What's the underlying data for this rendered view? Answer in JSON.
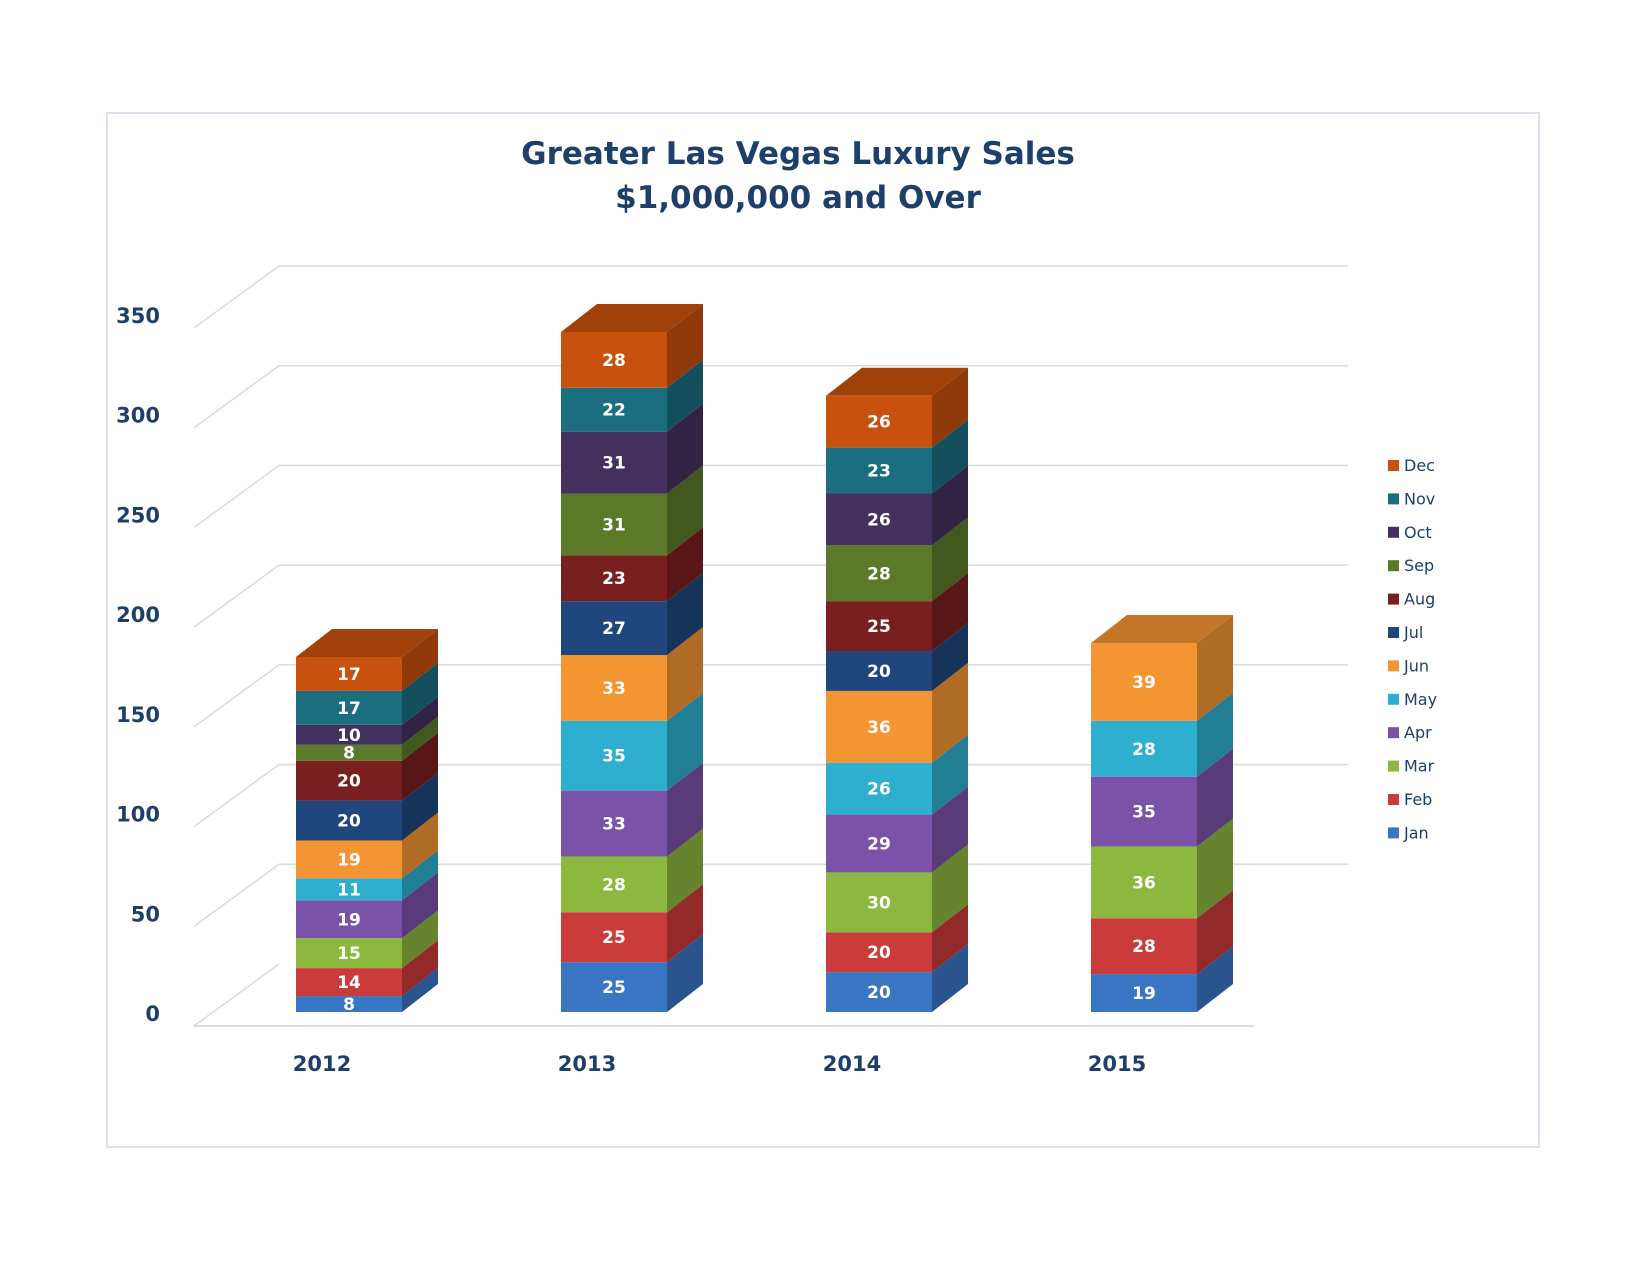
{
  "chart_data": {
    "type": "bar",
    "stacked": true,
    "title": "Greater Las Vegas Luxury Sales",
    "subtitle": "$1,000,000 and Over",
    "categories": [
      "2012",
      "2013",
      "2014",
      "2015"
    ],
    "ylim": [
      0,
      350
    ],
    "yticks": [
      "0",
      "50",
      "100",
      "150",
      "200",
      "250",
      "300",
      "350"
    ],
    "ytick_values": [
      0,
      50,
      100,
      150,
      200,
      250,
      300,
      350
    ],
    "grid": true,
    "legend_position": "right",
    "series": [
      {
        "name": "Jan",
        "color": "#3a75c4",
        "values": [
          8,
          25,
          20,
          19
        ]
      },
      {
        "name": "Feb",
        "color": "#cc3b3b",
        "values": [
          14,
          25,
          20,
          28
        ]
      },
      {
        "name": "Mar",
        "color": "#8db83f",
        "values": [
          15,
          28,
          30,
          36
        ]
      },
      {
        "name": "Apr",
        "color": "#7a52a7",
        "values": [
          19,
          33,
          29,
          35
        ]
      },
      {
        "name": "May",
        "color": "#2fafcf",
        "values": [
          11,
          35,
          26,
          28
        ]
      },
      {
        "name": "Jun",
        "color": "#f49433",
        "values": [
          19,
          33,
          36,
          39
        ]
      },
      {
        "name": "Jul",
        "color": "#1f477d",
        "values": [
          20,
          27,
          20,
          null
        ]
      },
      {
        "name": "Aug",
        "color": "#7a1f1f",
        "values": [
          20,
          23,
          25,
          null
        ]
      },
      {
        "name": "Sep",
        "color": "#5a7a29",
        "values": [
          8,
          31,
          28,
          null
        ]
      },
      {
        "name": "Oct",
        "color": "#44305f",
        "values": [
          10,
          31,
          26,
          null
        ]
      },
      {
        "name": "Nov",
        "color": "#1b6e80",
        "values": [
          17,
          22,
          23,
          null
        ]
      },
      {
        "name": "Dec",
        "color": "#c8510d",
        "values": [
          17,
          28,
          26,
          null
        ]
      }
    ]
  }
}
